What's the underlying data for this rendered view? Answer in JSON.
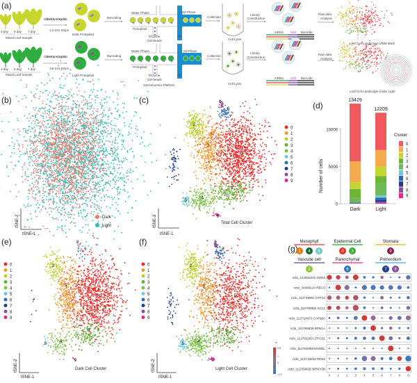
{
  "panel_labels": {
    "a": "(a)",
    "b": "(b)",
    "c": "(c)",
    "d": "(d)",
    "e": "(e)",
    "f": "(f)",
    "g": "(g)"
  },
  "workflow": {
    "days": [
      "3 day",
      "5 day",
      "7 day"
    ],
    "mixed_leaf_sample": "Mixed Leaf Sample",
    "enzyme_step": "Cellulase Enzyme Degradation",
    "strips": "1-2 mm Strips",
    "dark_protoplast": "Dark Protoplast",
    "light_protoplast": "Light Protoplast",
    "barcoding": "Barcoding",
    "water_phase": "Water Phase",
    "oil_phase": "Oil Phase",
    "protoplast": "Protoplast",
    "enzyme": "Enzyme",
    "gel_beads": "Gel-beads",
    "oil": "Oil",
    "platform": "10xGenomics Platform",
    "collection": "Collection",
    "cell_lysis": "Cell Lysis",
    "library": "Library",
    "construction": "Construction",
    "mrna": "mRNA",
    "umi": "UMI",
    "barcode": "Barcode",
    "raw_data": "Raw data",
    "analysis": "Analysis",
    "landscape_dark": "Leaf Cell Landscape Under Dark",
    "landscape_light": "Leaf Cell Landscape Under Light"
  },
  "colors": {
    "clusters": [
      "#ee2b26",
      "#f39a2c",
      "#b9d12e",
      "#63b23a",
      "#7cc24b",
      "#6ccbdc",
      "#2e6db6",
      "#1f3d8e",
      "#8a4c9e",
      "#e5218a"
    ],
    "dark": "#ef7b70",
    "light": "#2dbdb4",
    "bar_clusters": [
      "#f05a5e",
      "#f5aa4c",
      "#c2d530",
      "#6cb635",
      "#6dba57",
      "#6ccbdc",
      "#2c67b2",
      "#24398a",
      "#8b4da0",
      "#e7288c"
    ]
  },
  "tsne": {
    "xlabel": "tSNE-1",
    "ylabel": "tSNE-2",
    "legend_b": [
      "Dark",
      "Light"
    ],
    "clusters": [
      "0",
      "1",
      "2",
      "3",
      "4",
      "5",
      "6",
      "7",
      "8",
      "9"
    ],
    "title_c": "Total Cell Cluster",
    "title_e": "Dark Cell Cluster",
    "title_f": "Light Cell Cluster"
  },
  "chart_data": {
    "type": "bar",
    "stacked": true,
    "categories": [
      "Dark",
      "Light"
    ],
    "totals": [
      "13429",
      "12209"
    ],
    "ylabel": "Number of cells",
    "ylim": [
      0,
      14000
    ],
    "yticks": [
      "0",
      "5000",
      "10000"
    ],
    "legend_title": "Cluster",
    "series": [
      {
        "name": "0",
        "values": [
          7749,
          5009
        ]
      },
      {
        "name": "1",
        "values": [
          2800,
          2200
        ]
      },
      {
        "name": "2",
        "values": [
          900,
          1300
        ]
      },
      {
        "name": "3",
        "values": [
          1200,
          900
        ]
      },
      {
        "name": "4",
        "values": [
          600,
          1700
        ]
      },
      {
        "name": "5",
        "values": [
          30,
          300
        ]
      },
      {
        "name": "6",
        "values": [
          60,
          300
        ]
      },
      {
        "name": "7",
        "values": [
          40,
          250
        ]
      },
      {
        "name": "8",
        "values": [
          20,
          150
        ]
      },
      {
        "name": "9",
        "values": [
          30,
          100
        ]
      }
    ]
  },
  "celltypes": [
    {
      "name": "Mesophyll",
      "color": "#e8333a",
      "clusters": [
        "1",
        "4",
        "5"
      ]
    },
    {
      "name": "Epidermal Cell",
      "color": "#2ca02c",
      "clusters": [
        "0",
        "3"
      ]
    },
    {
      "name": "Stomata",
      "color": "#f5a623",
      "clusters": [
        "9"
      ]
    },
    {
      "name": "Vascular cell",
      "color": "#6a3d9a",
      "clusters": [
        "2"
      ]
    },
    {
      "name": "Parenchymal",
      "color": "#e7298a",
      "clusters": [
        "6"
      ]
    },
    {
      "name": "Primordium",
      "color": "#3fa9f5",
      "clusters": [
        "7",
        "8"
      ]
    }
  ],
  "celltype_cluster_colors": {
    "0": "#ee2b26",
    "1": "#e07b18",
    "2": "#8cc63f",
    "3": "#3aa935",
    "4": "#16693a",
    "5": "#6dcbc0",
    "6": "#2e74b8",
    "7": "#1f3d8e",
    "8": "#8a4c9e",
    "9": "#8c1a4a"
  },
  "dotplot": {
    "x": [
      "0",
      "1",
      "2",
      "3",
      "4",
      "5",
      "6",
      "7",
      "8",
      "9"
    ],
    "scale_ticks": [
      "2.5",
      "1",
      "0",
      "-1.5"
    ],
    "genes": [
      {
        "label": "ncbi_112602201 DHN3",
        "expr": [
          2.2,
          2.0,
          0.6,
          2.3,
          -1.2,
          -1.3,
          0.4,
          -1.4,
          -1.3,
          -0.6
        ],
        "pct": [
          0.7,
          0.6,
          0.45,
          0.8,
          0.3,
          0.25,
          0.4,
          0.1,
          0.2,
          0.6
        ]
      },
      {
        "label": "ncbi_36489124 RBCS",
        "expr": [
          -1.3,
          2.2,
          0.2,
          -1.2,
          -0.8,
          -0.9,
          -0.9,
          -0.6,
          -0.8,
          -1.2
        ],
        "pct": [
          0.15,
          0.8,
          0.7,
          0.2,
          0.7,
          0.7,
          0.6,
          0.65,
          0.6,
          0.3
        ]
      },
      {
        "label": "ncbi_112749881 STP13",
        "expr": [
          1.0,
          1.0,
          2.0,
          1.3,
          -1.2,
          -1.4,
          0.6,
          -1.3,
          -1.2,
          -0.8
        ],
        "pct": [
          0.6,
          0.55,
          0.5,
          0.75,
          0.25,
          0.1,
          0.45,
          0.2,
          0.2,
          0.4
        ]
      },
      {
        "label": "ncbi_112705992 SCL1",
        "expr": [
          2.2,
          1.8,
          1.0,
          1.6,
          -1.2,
          -1.4,
          -0.8,
          -1.2,
          -1.4,
          -0.2
        ],
        "pct": [
          0.55,
          0.55,
          0.35,
          0.85,
          0.3,
          0.1,
          0.3,
          0.2,
          0.1,
          0.5
        ]
      },
      {
        "label": "ncbi_112714973 CAP10A",
        "expr": [
          -1.2,
          -1.0,
          -1.3,
          -0.6,
          2.4,
          0.6,
          -1.4,
          0.0,
          -0.6,
          0.4
        ],
        "pct": [
          0.2,
          0.3,
          0.2,
          0.55,
          0.8,
          0.7,
          0.1,
          0.5,
          0.55,
          0.7
        ]
      },
      {
        "label": "ncbi_112789839 RPN1A",
        "expr": [
          -1.3,
          -1.3,
          -1.3,
          -1.0,
          -1.0,
          2.4,
          -0.5,
          0.6,
          -1.0,
          -1.0
        ],
        "pct": [
          0.1,
          0.15,
          0.1,
          0.2,
          0.35,
          0.8,
          0.25,
          0.4,
          0.2,
          0.25
        ]
      },
      {
        "label": "ncbi_112792263 LTPG31",
        "expr": [
          -1.3,
          -1.2,
          -1.2,
          -1.0,
          -1.0,
          -0.9,
          2.4,
          -0.2,
          0.6,
          -0.8
        ],
        "pct": [
          0.1,
          0.2,
          0.2,
          0.35,
          0.4,
          0.45,
          0.8,
          0.55,
          0.25,
          0.45
        ]
      },
      {
        "label": "ncbi_112782998 ENODL",
        "expr": [
          -1.3,
          -1.3,
          -1.3,
          -1.3,
          -1.3,
          -1.3,
          -1.3,
          2.5,
          -1.3,
          -1.3
        ],
        "pct": [
          0.1,
          0.1,
          0.1,
          0.1,
          0.1,
          0.1,
          0.1,
          0.8,
          0.1,
          0.1
        ]
      },
      {
        "label": "ncbi_112715933 PEN2",
        "expr": [
          -1.3,
          -1.2,
          -1.2,
          -0.8,
          -0.4,
          0.2,
          -0.9,
          -0.8,
          2.3,
          -1.4
        ],
        "pct": [
          0.1,
          0.15,
          0.15,
          0.3,
          0.75,
          0.7,
          0.35,
          0.45,
          0.65,
          0.85
        ]
      },
      {
        "label": "ncbi_112758426 WRKY30",
        "expr": [
          -1.3,
          -1.2,
          -1.2,
          -1.0,
          -0.9,
          -0.9,
          -1.0,
          -1.2,
          -1.2,
          2.4
        ],
        "pct": [
          0.1,
          0.2,
          0.2,
          0.3,
          0.35,
          0.3,
          0.3,
          0.2,
          0.25,
          0.75
        ]
      }
    ]
  }
}
